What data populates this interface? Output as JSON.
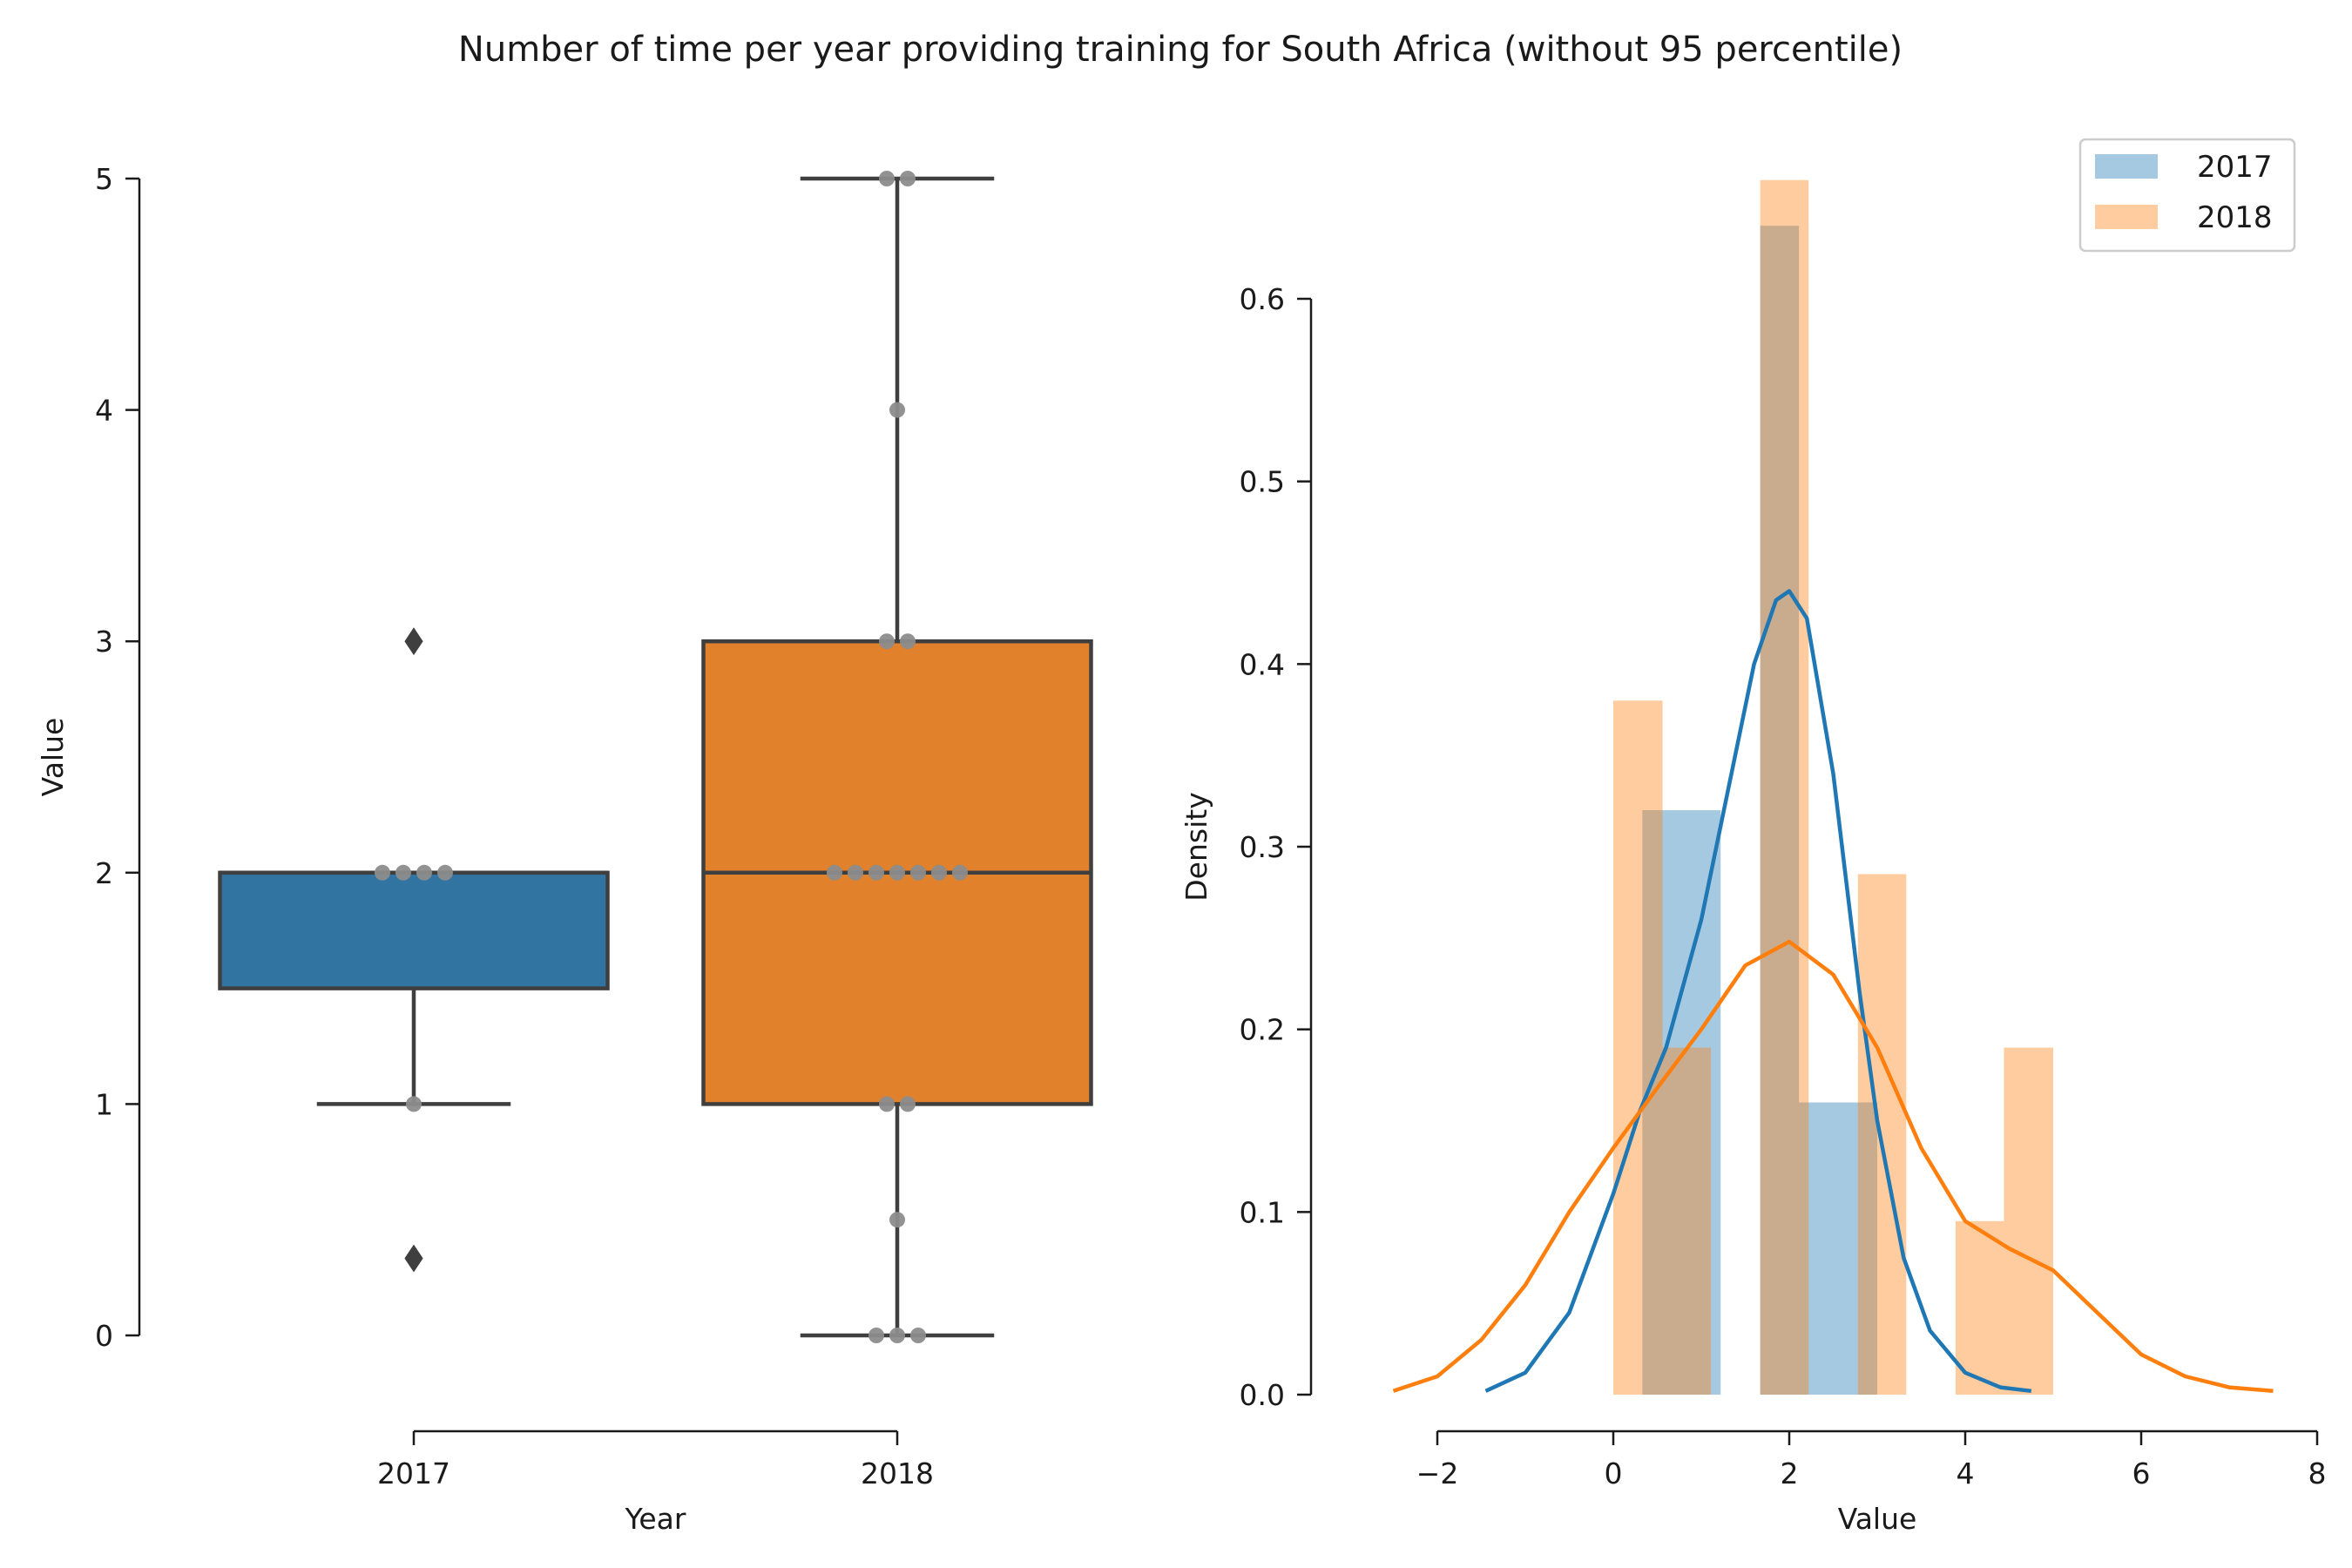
{
  "figure": {
    "title": "Number of time per year providing training for South Africa (without 95 percentile)"
  },
  "chart_data": [
    {
      "type": "box",
      "xlabel": "Year",
      "ylabel": "Value",
      "ylim": [
        0,
        5
      ],
      "yticks": [
        "0",
        "1",
        "2",
        "3",
        "4",
        "5"
      ],
      "categories": [
        "2017",
        "2018"
      ],
      "colors": [
        "#3274a1",
        "#e1812c"
      ],
      "boxes": [
        {
          "category": "2017",
          "whisker_low": 1,
          "q1": 1.5,
          "median": 2,
          "q3": 2,
          "whisker_high": 2,
          "outliers": [
            3,
            0.333
          ]
        },
        {
          "category": "2018",
          "whisker_low": 0,
          "q1": 1,
          "median": 2,
          "q3": 3,
          "whisker_high": 5,
          "outliers": []
        }
      ],
      "points": [
        {
          "category": "2017",
          "values": [
            2,
            2,
            2,
            2,
            1
          ]
        },
        {
          "category": "2018",
          "values": [
            5,
            5,
            4,
            3,
            3,
            2,
            2,
            2,
            2,
            2,
            2,
            2,
            1,
            1,
            0.5,
            0,
            0,
            0
          ]
        }
      ]
    },
    {
      "type": "histogram",
      "xlabel": "Value",
      "ylabel": "Density",
      "xlim": [
        -2,
        8
      ],
      "ylim": [
        0,
        0.6
      ],
      "xticks": [
        "−2",
        "0",
        "2",
        "4",
        "6",
        "8"
      ],
      "yticks": [
        "0.0",
        "0.1",
        "0.2",
        "0.3",
        "0.4",
        "0.5",
        "0.6"
      ],
      "legend_position": "top-right",
      "series": [
        {
          "name": "2017",
          "color": "#1f77b4",
          "bins": [
            {
              "x0": 0.33,
              "x1": 1.22,
              "density": 0.32
            },
            {
              "x0": 1.22,
              "x1": 1.67,
              "density": 0.0
            },
            {
              "x0": 1.67,
              "x1": 2.11,
              "density": 0.64
            },
            {
              "x0": 2.11,
              "x1": 3.0,
              "density": 0.16
            }
          ],
          "kde": [
            [
              -1.45,
              0.002
            ],
            [
              -1.0,
              0.012
            ],
            [
              -0.5,
              0.045
            ],
            [
              0,
              0.11
            ],
            [
              0.3,
              0.155
            ],
            [
              0.6,
              0.19
            ],
            [
              1.0,
              0.26
            ],
            [
              1.3,
              0.33
            ],
            [
              1.6,
              0.4
            ],
            [
              1.85,
              0.435
            ],
            [
              2.0,
              0.44
            ],
            [
              2.2,
              0.425
            ],
            [
              2.5,
              0.34
            ],
            [
              2.8,
              0.22
            ],
            [
              3.0,
              0.15
            ],
            [
              3.3,
              0.075
            ],
            [
              3.6,
              0.035
            ],
            [
              4.0,
              0.012
            ],
            [
              4.4,
              0.004
            ],
            [
              4.75,
              0.002
            ]
          ]
        },
        {
          "name": "2018",
          "color": "#ff7f0e",
          "bins": [
            {
              "x0": 0.0,
              "x1": 0.56,
              "density": 0.38
            },
            {
              "x0": 0.56,
              "x1": 1.11,
              "density": 0.19
            },
            {
              "x0": 1.67,
              "x1": 2.22,
              "density": 0.665
            },
            {
              "x0": 2.78,
              "x1": 3.33,
              "density": 0.285
            },
            {
              "x0": 3.89,
              "x1": 4.44,
              "density": 0.095
            },
            {
              "x0": 4.44,
              "x1": 5.0,
              "density": 0.19
            }
          ],
          "kde": [
            [
              -2.5,
              0.002
            ],
            [
              -2.0,
              0.01
            ],
            [
              -1.5,
              0.03
            ],
            [
              -1.0,
              0.06
            ],
            [
              -0.5,
              0.1
            ],
            [
              0,
              0.135
            ],
            [
              0.5,
              0.168
            ],
            [
              1.0,
              0.2
            ],
            [
              1.5,
              0.235
            ],
            [
              2.0,
              0.248
            ],
            [
              2.5,
              0.23
            ],
            [
              3.0,
              0.19
            ],
            [
              3.5,
              0.135
            ],
            [
              4.0,
              0.095
            ],
            [
              4.5,
              0.08
            ],
            [
              5.0,
              0.068
            ],
            [
              5.5,
              0.045
            ],
            [
              6.0,
              0.022
            ],
            [
              6.5,
              0.01
            ],
            [
              7.0,
              0.004
            ],
            [
              7.5,
              0.002
            ]
          ]
        }
      ]
    }
  ]
}
